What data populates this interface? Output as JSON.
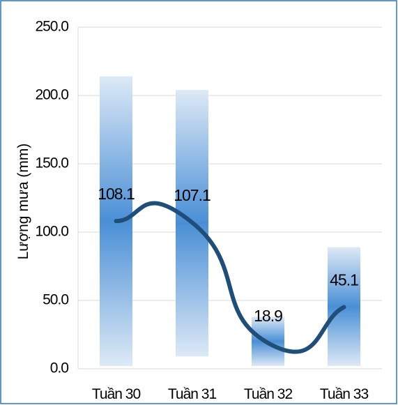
{
  "chart_data": {
    "type": "bar",
    "ylabel": "Lượng mưa (mm)",
    "xlabel": "",
    "ylim": [
      0,
      250
    ],
    "yticks": [
      "0.0",
      "50.0",
      "100.0",
      "150.0",
      "200.0",
      "250.0"
    ],
    "grid": true,
    "categories": [
      "Tuần 30",
      "Tuần 31",
      "Tuần 32",
      "Tuần 33"
    ],
    "bar_ranges": [
      {
        "low": 2,
        "high": 214
      },
      {
        "low": 9,
        "high": 204
      },
      {
        "low": 2,
        "high": 38
      },
      {
        "low": 2,
        "high": 89
      }
    ],
    "series": [
      {
        "type": "line",
        "values": [
          108.1,
          107.1,
          18.9,
          45.1
        ],
        "labels": [
          "108.1",
          "107.1",
          "18.9",
          "45.1"
        ]
      }
    ],
    "colors": {
      "bar_center": "#4a8fd6",
      "bar_edge": "#dde9f6",
      "line": "#1f4e79",
      "frame": "#2e75b6"
    }
  }
}
